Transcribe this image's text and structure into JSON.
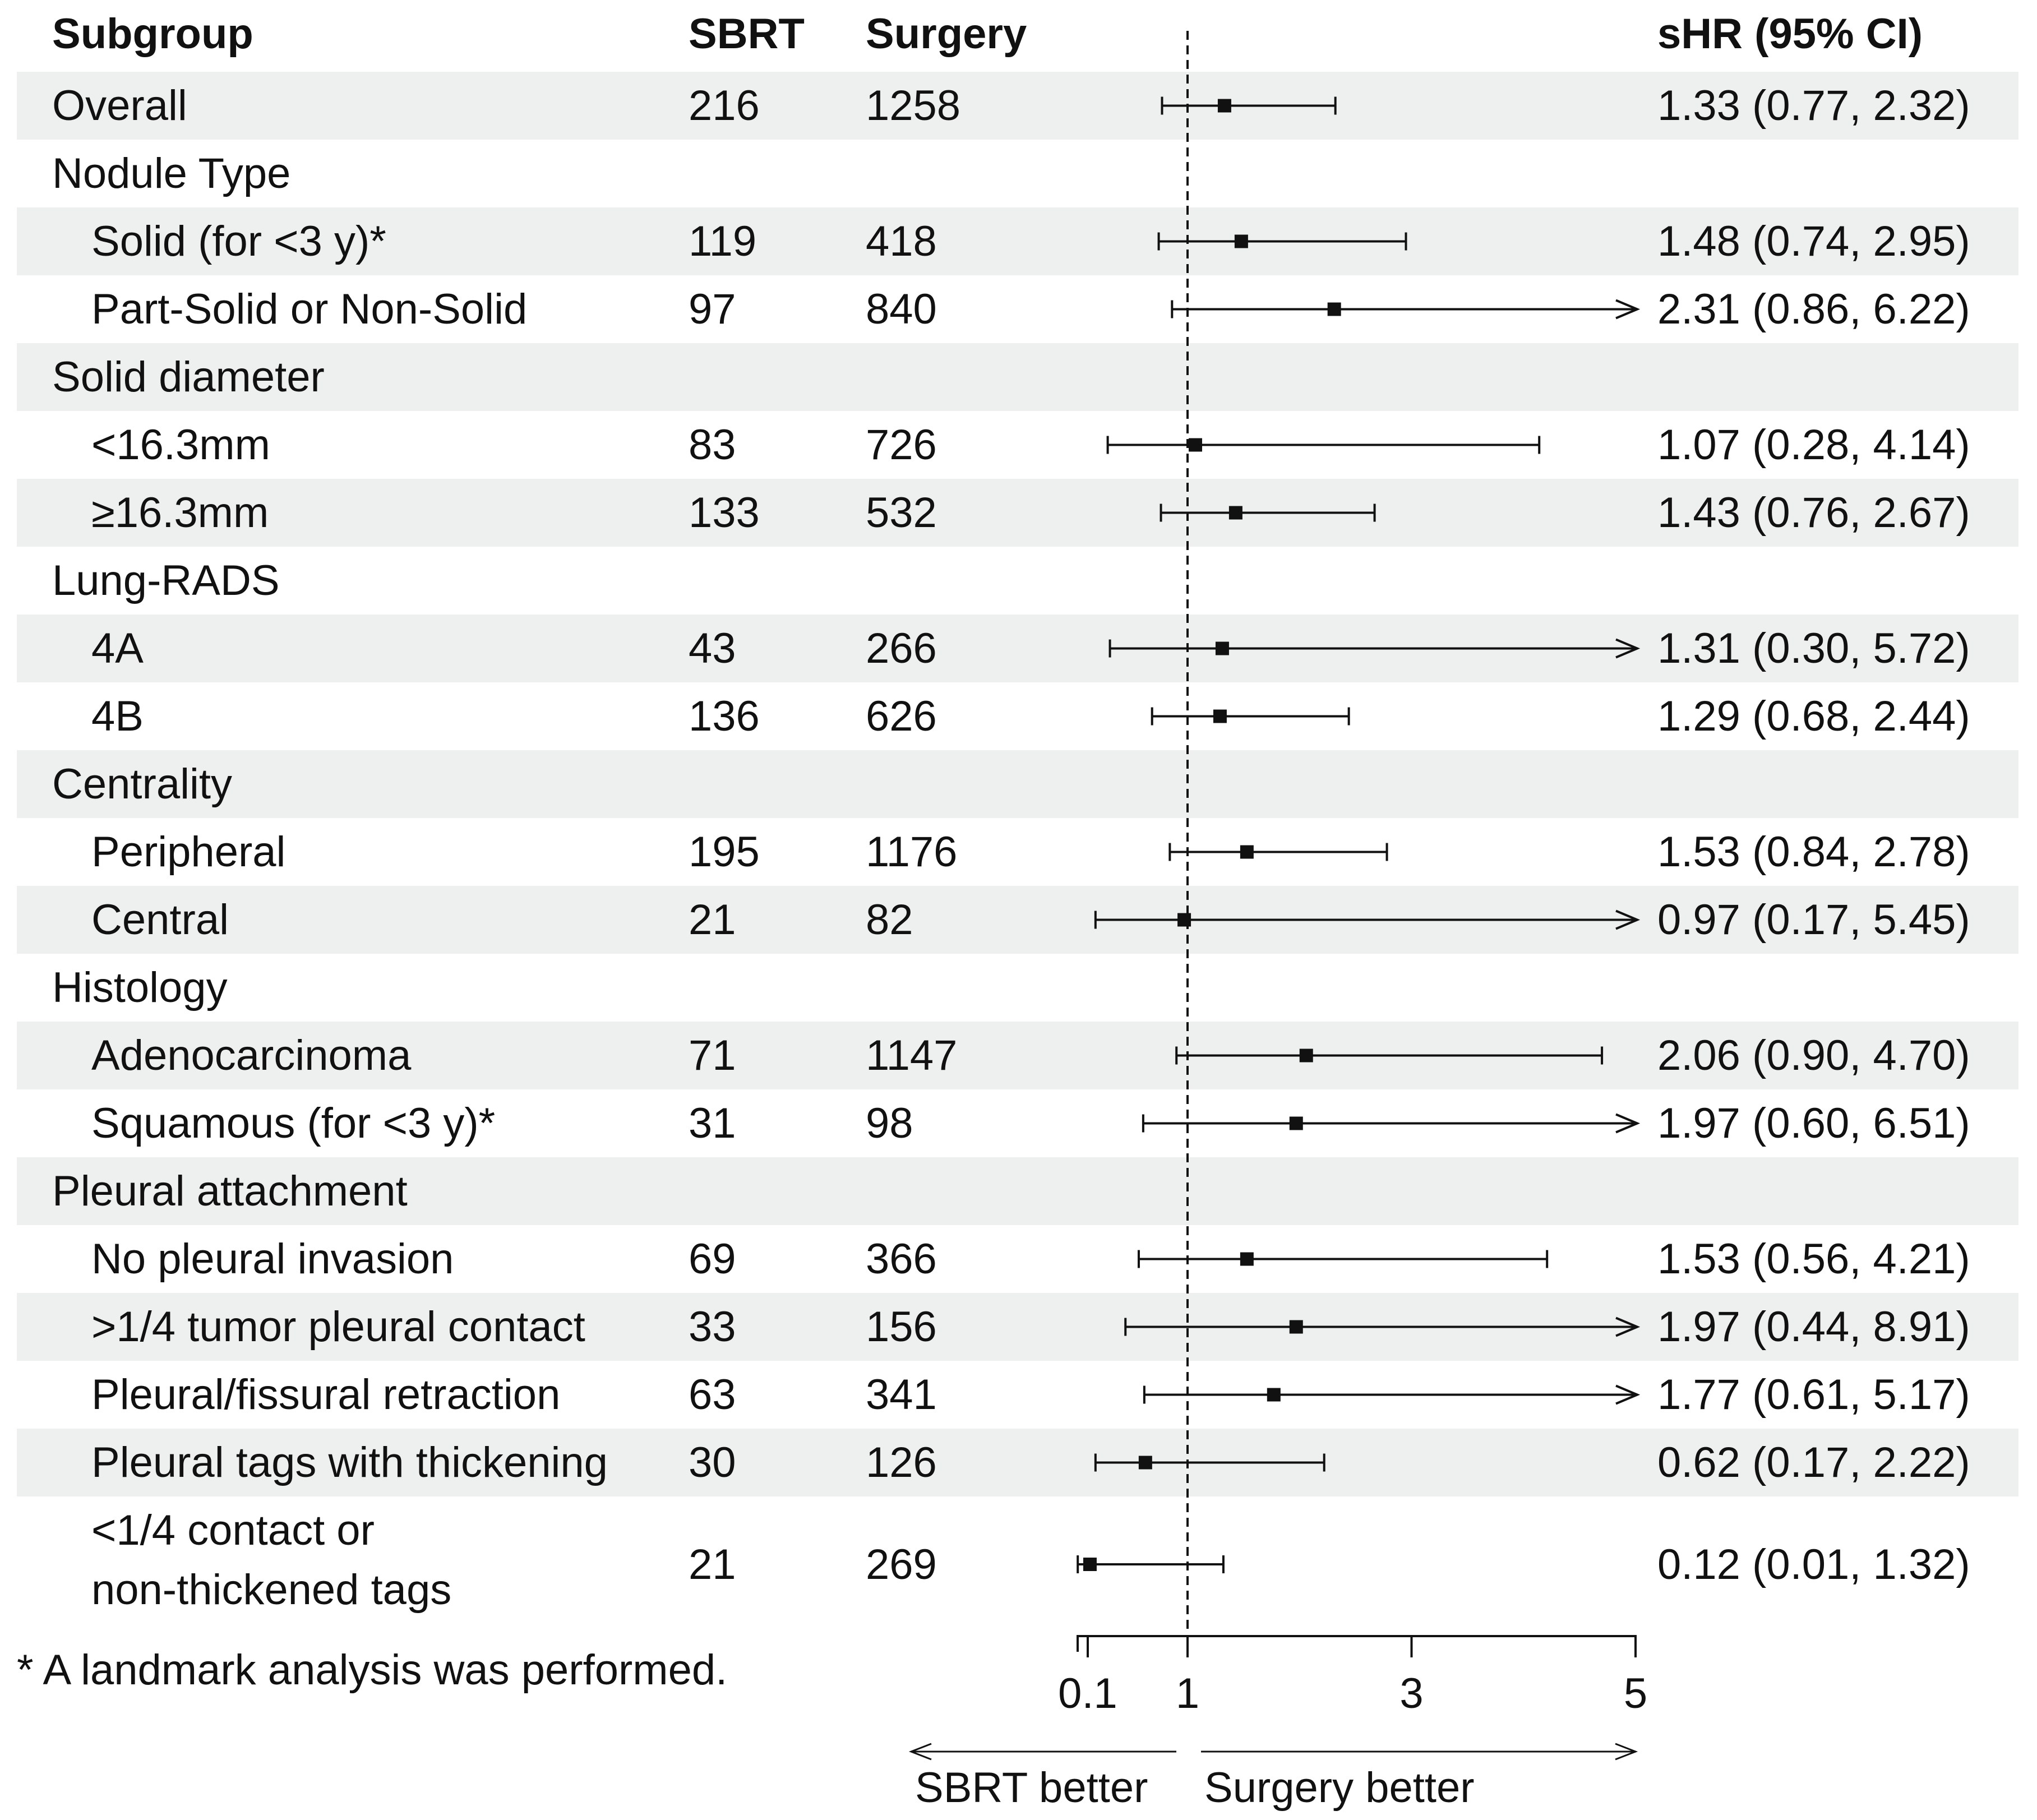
{
  "colors": {
    "band": "#edf0ef",
    "ink": "#111111"
  },
  "headers": {
    "subgroup": "Subgroup",
    "sbrt": "SBRT",
    "surgery": "Surgery",
    "shr": "sHR (95% CI)"
  },
  "rows": [
    {
      "label": "Overall",
      "type": "group",
      "sbrt": "216",
      "surgery": "1258",
      "shr_text": "1.33 (0.77, 2.32)"
    },
    {
      "label": "Nodule Type",
      "type": "group"
    },
    {
      "label": "Solid (for <3 y)*",
      "type": "item",
      "sbrt": "119",
      "surgery": "418",
      "shr_text": "1.48 (0.74, 2.95)"
    },
    {
      "label": "Part-Solid or Non-Solid",
      "type": "item",
      "sbrt": "97",
      "surgery": "840",
      "shr_text": "2.31 (0.86, 6.22)"
    },
    {
      "label": "Solid diameter",
      "type": "group"
    },
    {
      "label": "<16.3mm",
      "type": "item",
      "sbrt": "83",
      "surgery": "726",
      "shr_text": "1.07 (0.28, 4.14)"
    },
    {
      "label": "≥16.3mm",
      "type": "item",
      "sbrt": "133",
      "surgery": "532",
      "shr_text": "1.43 (0.76, 2.67)"
    },
    {
      "label": "Lung-RADS",
      "type": "group"
    },
    {
      "label": "4A",
      "type": "item",
      "sbrt": "43",
      "surgery": "266",
      "shr_text": "1.31 (0.30, 5.72)"
    },
    {
      "label": "4B",
      "type": "item",
      "sbrt": "136",
      "surgery": "626",
      "shr_text": "1.29 (0.68, 2.44)"
    },
    {
      "label": "Centrality",
      "type": "group"
    },
    {
      "label": "Peripheral",
      "type": "item",
      "sbrt": "195",
      "surgery": "1176",
      "shr_text": "1.53 (0.84, 2.78)"
    },
    {
      "label": "Central",
      "type": "item",
      "sbrt": "21",
      "surgery": "82",
      "shr_text": "0.97 (0.17, 5.45)"
    },
    {
      "label": "Histology",
      "type": "group"
    },
    {
      "label": "Adenocarcinoma",
      "type": "item",
      "sbrt": "71",
      "surgery": "1147",
      "shr_text": "2.06 (0.90, 4.70)"
    },
    {
      "label": "Squamous (for <3 y)*",
      "type": "item",
      "sbrt": "31",
      "surgery": "98",
      "shr_text": "1.97 (0.60, 6.51)"
    },
    {
      "label": "Pleural attachment",
      "type": "group"
    },
    {
      "label": "No pleural invasion",
      "type": "item",
      "sbrt": "69",
      "surgery": "366",
      "shr_text": "1.53 (0.56, 4.21)"
    },
    {
      "label": ">1/4 tumor pleural contact",
      "type": "item",
      "sbrt": "33",
      "surgery": "156",
      "shr_text": "1.97 (0.44, 8.91)"
    },
    {
      "label": "Pleural/fissural retraction",
      "type": "item",
      "sbrt": "63",
      "surgery": "341",
      "shr_text": "1.77 (0.61, 5.17)"
    },
    {
      "label": "Pleural tags with thickening",
      "type": "item",
      "sbrt": "30",
      "surgery": "126",
      "shr_text": "0.62 (0.17, 2.22)"
    },
    {
      "label": "<1/4 contact or non-thickened tags",
      "label_lines": [
        "<1/4 contact or",
        "non-thickened tags"
      ],
      "type": "item",
      "sbrt": "21",
      "surgery": "269",
      "shr_text": "0.12 (0.01, 1.32)"
    }
  ],
  "footnote": "* A landmark analysis was performed.",
  "chart_data": {
    "type": "forest",
    "x_scale": "piecewise-linear",
    "xlim": [
      -0.1,
      5
    ],
    "xticks": [
      0.1,
      1,
      3,
      5
    ],
    "xtick_labels": [
      "0.1",
      "1",
      "3",
      "5"
    ],
    "reference_line": 1,
    "direction_labels": {
      "left": "SBRT better",
      "right": "Surgery better"
    },
    "categories": [
      "Overall",
      "Solid (for <3 y)*",
      "Part-Solid or Non-Solid",
      "<16.3mm",
      "≥16.3mm",
      "4A",
      "4B",
      "Peripheral",
      "Central",
      "Adenocarcinoma",
      "Squamous (for <3 y)*",
      "No pleural invasion",
      ">1/4 tumor pleural contact",
      "Pleural/fissural retraction",
      "Pleural tags with thickening",
      "<1/4 contact or non-thickened tags"
    ],
    "estimates": [
      1.33,
      1.48,
      2.31,
      1.07,
      1.43,
      1.31,
      1.29,
      1.53,
      0.97,
      2.06,
      1.97,
      1.53,
      1.97,
      1.77,
      0.62,
      0.12
    ],
    "lower": [
      0.77,
      0.74,
      0.86,
      0.28,
      0.76,
      0.3,
      0.68,
      0.84,
      0.17,
      0.9,
      0.6,
      0.56,
      0.44,
      0.61,
      0.17,
      0.01
    ],
    "upper": [
      2.32,
      2.95,
      6.22,
      4.14,
      2.67,
      5.72,
      2.44,
      2.78,
      5.45,
      4.7,
      6.51,
      4.21,
      8.91,
      5.17,
      2.22,
      1.32
    ],
    "truncated_upper": [
      false,
      false,
      true,
      false,
      false,
      true,
      false,
      false,
      true,
      false,
      true,
      false,
      true,
      true,
      false,
      false
    ]
  }
}
